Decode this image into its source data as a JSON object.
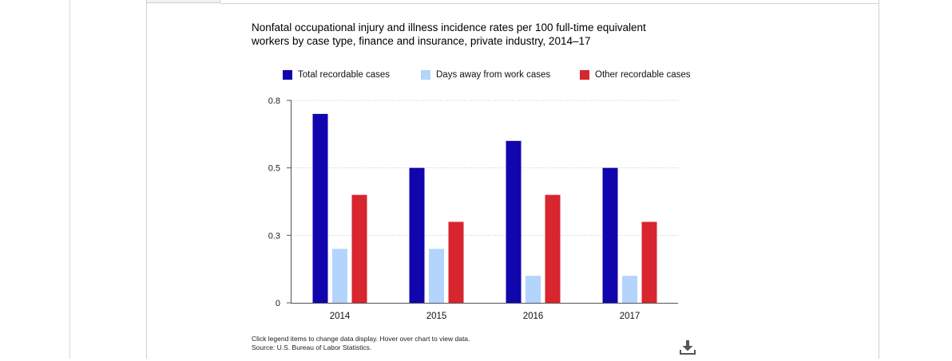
{
  "chart_data": {
    "type": "bar",
    "title": "Nonfatal occupational injury and illness incidence rates per 100 full-time equivalent workers by case type, finance and insurance, private industry, 2014–17",
    "categories": [
      "2014",
      "2015",
      "2016",
      "2017"
    ],
    "series": [
      {
        "name": "Total recordable cases",
        "color": "#1105ad",
        "values": [
          0.7,
          0.5,
          0.6,
          0.5
        ]
      },
      {
        "name": "Days away from work cases",
        "color": "#b3d4fc",
        "values": [
          0.2,
          0.2,
          0.1,
          0.1
        ]
      },
      {
        "name": "Other recordable cases",
        "color": "#d7262e",
        "values": [
          0.4,
          0.3,
          0.4,
          0.3
        ]
      }
    ],
    "yticks": [
      0,
      0.25,
      0.5,
      0.75
    ],
    "ytick_labels": [
      "0",
      "0.3",
      "0.5",
      "0.8"
    ],
    "ylim": [
      0,
      0.75
    ],
    "xlabel": "",
    "ylabel": "",
    "grid": true,
    "legend_position": "top"
  },
  "footnote": {
    "line1": "Click legend items to change data display. Hover over chart to view data.",
    "line2": "Source: U.S. Bureau of Labor Statistics."
  },
  "icons": {
    "download": "download-icon"
  }
}
